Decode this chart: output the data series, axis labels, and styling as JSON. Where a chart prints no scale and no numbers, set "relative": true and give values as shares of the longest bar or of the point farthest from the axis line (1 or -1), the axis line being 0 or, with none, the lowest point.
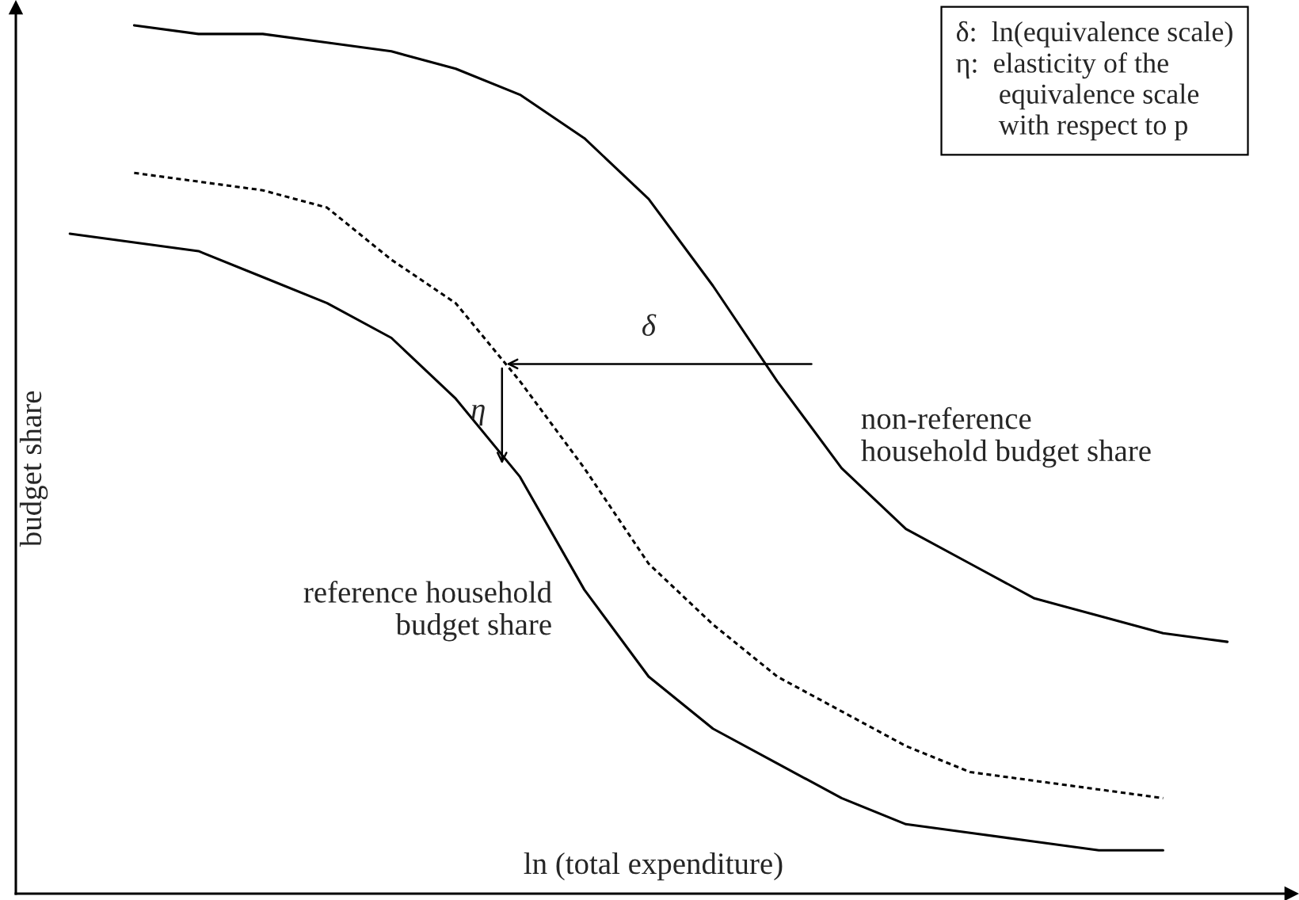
{
  "chart_data": {
    "type": "line",
    "relative": true,
    "xlabel": "ln (total expenditure)",
    "ylabel": "budget share",
    "categories": [
      null,
      null,
      null,
      null,
      null,
      null,
      null,
      null,
      null,
      null,
      null,
      null,
      null,
      null,
      null,
      null,
      null,
      null,
      null
    ],
    "series": [
      {
        "name": "non-reference\nhousehold budget share",
        "color": "#000000",
        "line_style": "solid",
        "values": [
          null,
          1.0,
          0.99,
          0.99,
          0.98,
          0.97,
          0.95,
          0.92,
          0.87,
          0.8,
          0.7,
          0.59,
          0.49,
          0.42,
          0.38,
          0.34,
          0.32,
          0.3,
          0.29
        ]
      },
      {
        "color": "#000000",
        "line_style": "dotted",
        "values": [
          null,
          0.83,
          0.82,
          0.81,
          0.79,
          0.73,
          0.68,
          0.59,
          0.49,
          0.38,
          0.31,
          0.25,
          0.21,
          0.17,
          0.14,
          0.13,
          0.12,
          0.11,
          null
        ]
      },
      {
        "name": "reference household\nbudget share",
        "color": "#000000",
        "line_style": "solid",
        "values": [
          0.76,
          0.75,
          0.74,
          0.71,
          0.68,
          0.64,
          0.57,
          0.48,
          0.35,
          0.25,
          0.19,
          0.15,
          0.11,
          0.08,
          0.07,
          0.06,
          0.05,
          0.05,
          null
        ]
      }
    ],
    "annotations": [
      "δ",
      "η",
      "δ:  ln(equivalence scale)\nη:  elasticity of the\n      equivalence scale\n      with respect to p"
    ],
    "legend": false
  }
}
